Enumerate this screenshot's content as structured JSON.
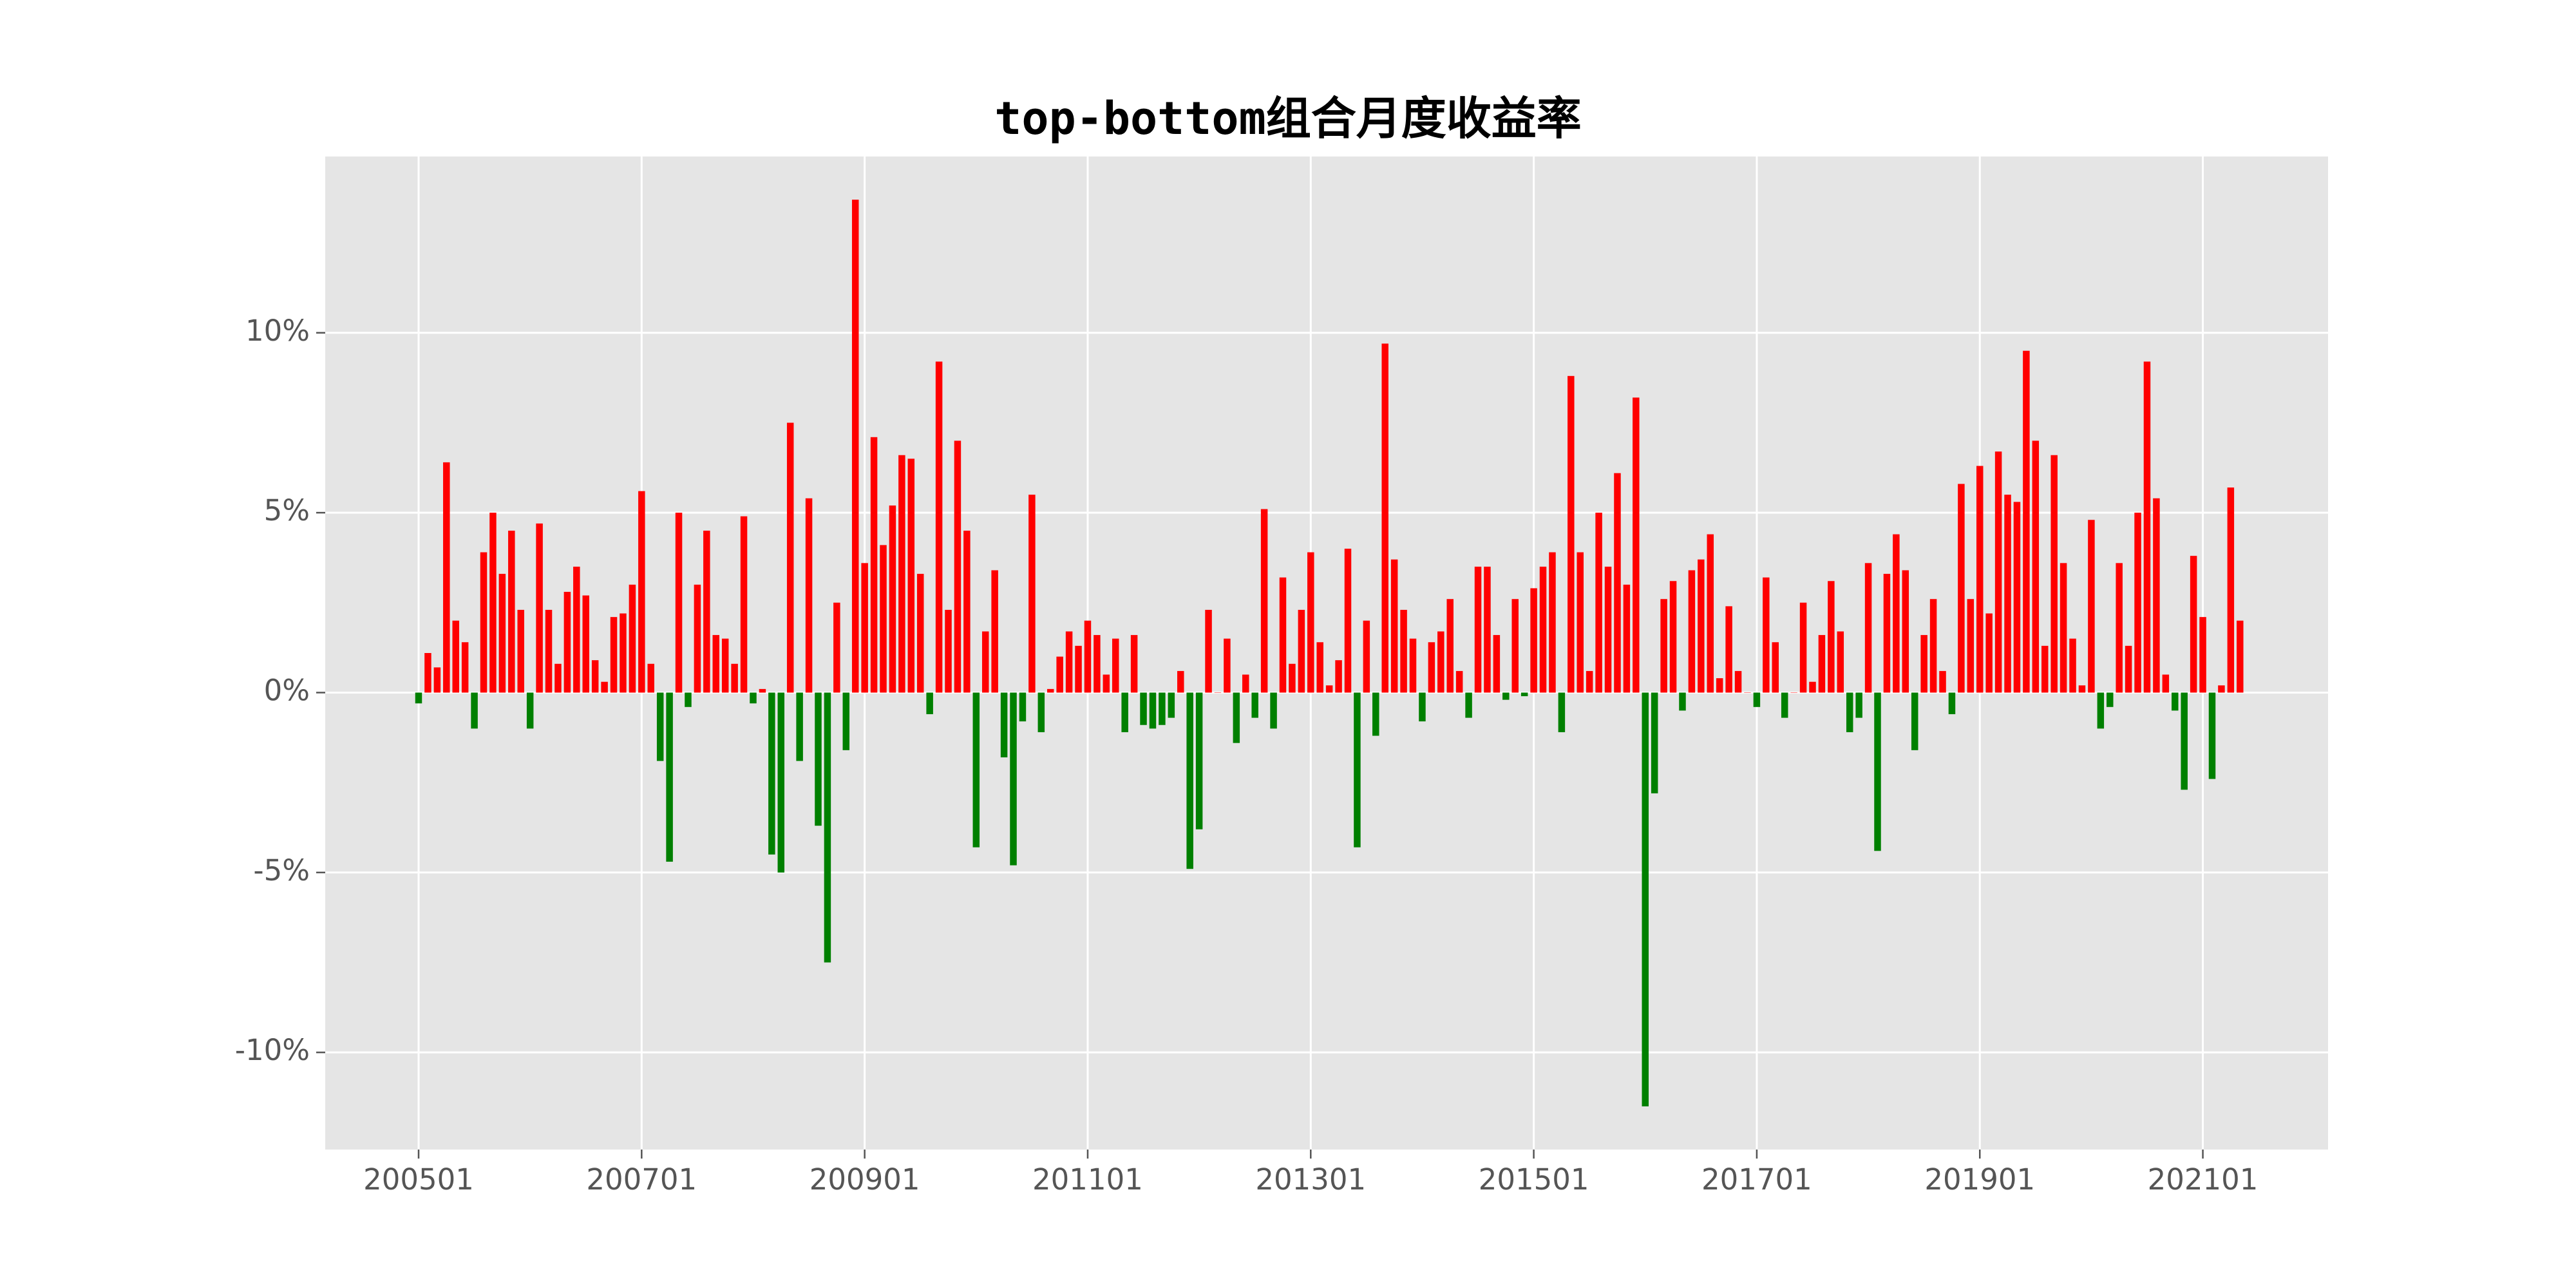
{
  "chart_data": {
    "type": "bar",
    "title": "top-bottom组合月度收益率",
    "xlabel": "",
    "ylabel": "",
    "y_unit": "%",
    "ylim": [
      -12.7,
      14.9
    ],
    "y_ticks": [
      -10,
      -5,
      0,
      5,
      10
    ],
    "y_tick_labels": [
      "-10%",
      "-5%",
      "0%",
      "5%",
      "10%"
    ],
    "x_ticks": [
      "200501",
      "200701",
      "200901",
      "201101",
      "201301",
      "201501",
      "201701",
      "201901",
      "202101"
    ],
    "x_start": "200501",
    "grid": true,
    "legend": "none",
    "colors": {
      "positive": "#ff0000",
      "negative": "#008000",
      "background": "#e5e5e5",
      "grid": "#ffffff"
    },
    "values": [
      -0.3,
      1.1,
      0.7,
      6.4,
      2.0,
      1.4,
      -1.0,
      3.9,
      5.0,
      3.3,
      4.5,
      2.3,
      -1.0,
      4.7,
      2.3,
      0.8,
      2.8,
      3.5,
      2.7,
      0.9,
      0.3,
      2.1,
      2.2,
      3.0,
      5.6,
      0.8,
      -1.9,
      -4.7,
      5.0,
      -0.4,
      3.0,
      4.5,
      1.6,
      1.5,
      0.8,
      4.9,
      -0.3,
      0.1,
      -4.5,
      -5.0,
      7.5,
      -1.9,
      5.4,
      -3.7,
      -7.5,
      2.5,
      -1.6,
      13.7,
      3.6,
      7.1,
      4.1,
      5.2,
      6.6,
      6.5,
      3.3,
      -0.6,
      9.2,
      2.3,
      7.0,
      4.5,
      -4.3,
      1.7,
      3.4,
      -1.8,
      -4.8,
      -0.8,
      5.5,
      -1.1,
      0.1,
      1.0,
      1.7,
      1.3,
      2.0,
      1.6,
      0.5,
      1.5,
      -1.1,
      1.6,
      -0.9,
      -1.0,
      -0.9,
      -0.7,
      0.6,
      -4.9,
      -3.8,
      2.3,
      0.0,
      1.5,
      -1.4,
      0.5,
      -0.7,
      5.1,
      -1.0,
      3.2,
      0.8,
      2.3,
      3.9,
      1.4,
      0.2,
      0.9,
      4.0,
      -4.3,
      2.0,
      -1.2,
      9.7,
      3.7,
      2.3,
      1.5,
      -0.8,
      1.4,
      1.7,
      2.6,
      0.6,
      -0.7,
      3.5,
      3.5,
      1.6,
      -0.2,
      2.6,
      -0.1,
      2.9,
      3.5,
      3.9,
      -1.1,
      8.8,
      3.9,
      0.6,
      5.0,
      3.5,
      6.1,
      3.0,
      8.2,
      -11.5,
      -2.8,
      2.6,
      3.1,
      -0.5,
      3.4,
      3.7,
      4.4,
      0.4,
      2.4,
      0.6,
      0.0,
      -0.4,
      3.2,
      1.4,
      -0.7,
      0.0,
      2.5,
      0.3,
      1.6,
      3.1,
      1.7,
      -1.1,
      -0.7,
      3.6,
      -4.4,
      3.3,
      4.4,
      3.4,
      -1.6,
      1.6,
      2.6,
      0.6,
      -0.6,
      5.8,
      2.6,
      6.3,
      2.2,
      6.7,
      5.5,
      5.3,
      9.5,
      7.0,
      1.3,
      6.6,
      3.6,
      1.5,
      0.2,
      4.8,
      -1.0,
      -0.4,
      3.6,
      1.3,
      5.0,
      9.2,
      5.4,
      0.5,
      -0.5,
      -2.7,
      3.8,
      2.1,
      -2.4,
      0.2,
      5.7,
      2.0
    ]
  }
}
